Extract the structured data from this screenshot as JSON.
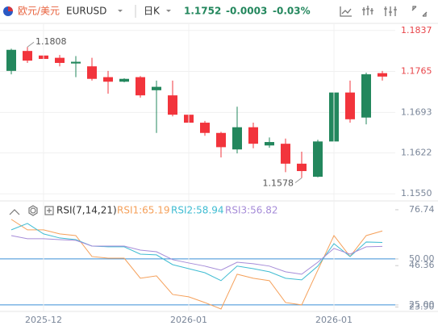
{
  "chart_data": [
    {
      "type": "candlestick",
      "title": "欧元/美元",
      "symbol": "EURUSD",
      "period": "日K",
      "price": "1.1752",
      "change": "-0.0003",
      "change_percent": "-0.03%",
      "open": [
        1.1766,
        1.1801,
        1.1793,
        1.1789,
        1.1779,
        1.1774,
        1.1755,
        1.1747,
        1.1755,
        1.1732,
        1.1723,
        1.1689,
        1.1675,
        1.1657,
        1.1628,
        1.1667,
        1.1635,
        1.1638,
        1.1603,
        1.158,
        1.1642,
        1.1728,
        1.1684,
        1.1762
      ],
      "high": [
        1.1805,
        1.1808,
        1.1797,
        1.1794,
        1.1792,
        1.1789,
        1.1766,
        1.1753,
        1.1757,
        1.1749,
        1.1749,
        1.1692,
        1.1678,
        1.1659,
        1.1703,
        1.1675,
        1.1649,
        1.1647,
        1.1624,
        1.1645,
        1.1777,
        1.1749,
        1.1763,
        1.1766
      ],
      "low": [
        1.176,
        1.178,
        1.1783,
        1.1774,
        1.1755,
        1.1749,
        1.1726,
        1.1746,
        1.1719,
        1.1657,
        1.1686,
        1.1674,
        1.1652,
        1.1614,
        1.1621,
        1.163,
        1.1631,
        1.1588,
        1.1578,
        1.1579,
        1.1638,
        1.1675,
        1.1672,
        1.1749
      ],
      "close": [
        1.1803,
        1.1784,
        1.1787,
        1.178,
        1.1782,
        1.1752,
        1.1747,
        1.1752,
        1.1723,
        1.1738,
        1.1689,
        1.1675,
        1.1657,
        1.1632,
        1.1667,
        1.1638,
        1.1641,
        1.1603,
        1.159,
        1.1642,
        1.1728,
        1.1681,
        1.176,
        1.1756
      ],
      "up_color": "#23875d",
      "down_color": "#f2343c",
      "ylim": [
        1.1539,
        1.1848
      ],
      "yticks": [
        1.1837,
        1.1765,
        1.1693,
        1.1622,
        {
          "value": 1.155,
          "label": "1.1550"
        }
      ],
      "grid": true
    },
    {
      "type": "line",
      "title": "RSI(7,14,21)",
      "categories": [
        null,
        null,
        "2025-12",
        null,
        null,
        null,
        null,
        null,
        null,
        null,
        null,
        "2026-01",
        null,
        null,
        null,
        null,
        null,
        null,
        null,
        null,
        "2026-01",
        null,
        null,
        null
      ],
      "series": [
        {
          "name": "RSI1:65.19",
          "color": "#f5a05a",
          "values": [
            71.5,
            65.8,
            65.8,
            63.6,
            62.7,
            51.3,
            50.4,
            50.4,
            39.5,
            40.8,
            30.7,
            29.4,
            26.3,
            22.8,
            41.7,
            39.5,
            38.2,
            26.3,
            25.0,
            43.9,
            62.7,
            51.3,
            62.7,
            65.19
          ]
        },
        {
          "name": "RSI2:58.94",
          "color": "#3fbcd2",
          "values": [
            65.8,
            69.3,
            63.6,
            61.4,
            60.5,
            57.0,
            56.6,
            56.6,
            52.6,
            52.2,
            46.9,
            44.7,
            42.5,
            38.2,
            46.1,
            44.7,
            43.0,
            39.5,
            38.6,
            46.1,
            58.3,
            51.3,
            59.2,
            58.94
          ]
        },
        {
          "name": "RSI3:56.82",
          "color": "#a68cd8",
          "values": [
            62.7,
            61.0,
            61.0,
            60.5,
            60.1,
            57.0,
            57.0,
            57.0,
            54.8,
            53.9,
            49.6,
            47.8,
            46.1,
            43.9,
            48.2,
            47.4,
            46.1,
            43.0,
            41.7,
            48.2,
            55.7,
            52.6,
            56.6,
            56.82
          ]
        }
      ],
      "ylim": [
        21.9,
        81.1
      ],
      "yticks": [
        76.74,
        {
          "value": 50,
          "label": "50.00"
        },
        46.36,
        {
          "value": 25,
          "label": "25.00"
        },
        {
          "value": 23.9,
          "label": "23.90"
        }
      ],
      "levels": [
        50,
        25
      ],
      "level_color": "#3a8fd6"
    }
  ]
}
